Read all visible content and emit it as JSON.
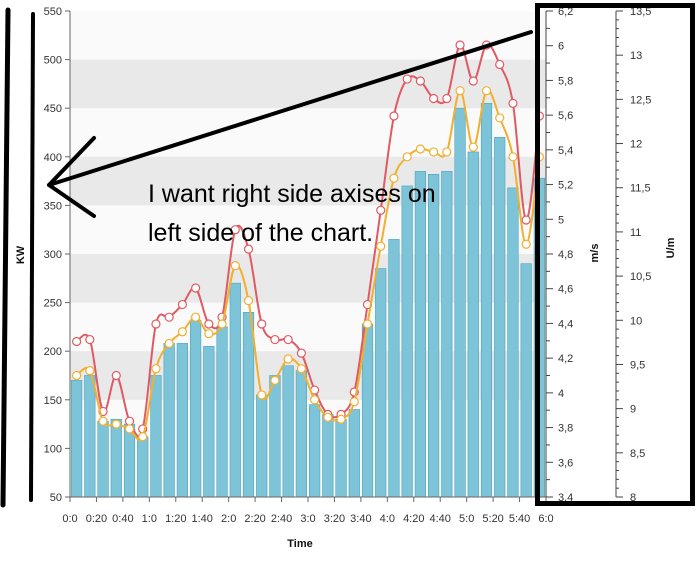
{
  "chart_data": {
    "type": "bar",
    "x_label": "Time",
    "left_axis": {
      "label": "KW",
      "ticks": [
        50,
        100,
        150,
        200,
        250,
        300,
        350,
        400,
        450,
        500,
        550
      ],
      "range": [
        50,
        550
      ]
    },
    "right_axis_1": {
      "label": "m/s",
      "ticks": [
        "3,4",
        "3,6",
        "3,8",
        "4",
        "4,2",
        "4,4",
        "4,6",
        "4,8",
        "5",
        "5,2",
        "5,4",
        "5,6",
        "5,8",
        "6",
        "6,2"
      ],
      "range": [
        3.4,
        6.2
      ]
    },
    "right_axis_2": {
      "label": "U/m",
      "ticks": [
        "8",
        "8,5",
        "9",
        "9,5",
        "10",
        "10,5",
        "11",
        "11,5",
        "12",
        "12,5",
        "13",
        "13,5"
      ],
      "range": [
        8,
        13.5
      ]
    },
    "x_tick_labels": [
      "0:0",
      "0:20",
      "0:40",
      "1:0",
      "1:20",
      "1:40",
      "2:0",
      "2:20",
      "2:40",
      "3:0",
      "3:20",
      "3:40",
      "4:0",
      "4:20",
      "4:40",
      "5:0",
      "5:20",
      "5:40",
      "6:0"
    ],
    "series": [
      {
        "name": "KW",
        "type": "bar",
        "color": "#7ec4d8",
        "values": [
          170,
          175,
          128,
          130,
          125,
          112,
          175,
          208,
          208,
          232,
          205,
          225,
          270,
          240,
          155,
          175,
          185,
          180,
          145,
          135,
          130,
          140,
          228,
          285,
          315,
          370,
          385,
          382,
          385,
          450,
          405,
          455,
          420,
          368,
          290,
          378
        ]
      },
      {
        "type": "line",
        "color": "#e05a64",
        "values": [
          210,
          212,
          138,
          175,
          128,
          120,
          228,
          235,
          248,
          265,
          228,
          235,
          325,
          305,
          228,
          212,
          212,
          198,
          160,
          135,
          135,
          158,
          248,
          345,
          442,
          480,
          478,
          460,
          460,
          515,
          478,
          515,
          495,
          455,
          335,
          442
        ]
      },
      {
        "type": "line",
        "color": "#f0b030",
        "values": [
          175,
          180,
          128,
          125,
          120,
          112,
          182,
          208,
          220,
          235,
          218,
          228,
          288,
          252,
          155,
          170,
          192,
          182,
          150,
          132,
          130,
          148,
          228,
          308,
          378,
          400,
          408,
          405,
          405,
          468,
          410,
          468,
          440,
          400,
          310,
          400
        ]
      }
    ],
    "annotation": "I want right side axises on left side of the chart."
  },
  "colors": {
    "band": "#e9e9e9",
    "bar": "#7ec4d8",
    "bar_edge": "#4aa3bd",
    "red": "#e05a64",
    "orange": "#f0b030"
  }
}
